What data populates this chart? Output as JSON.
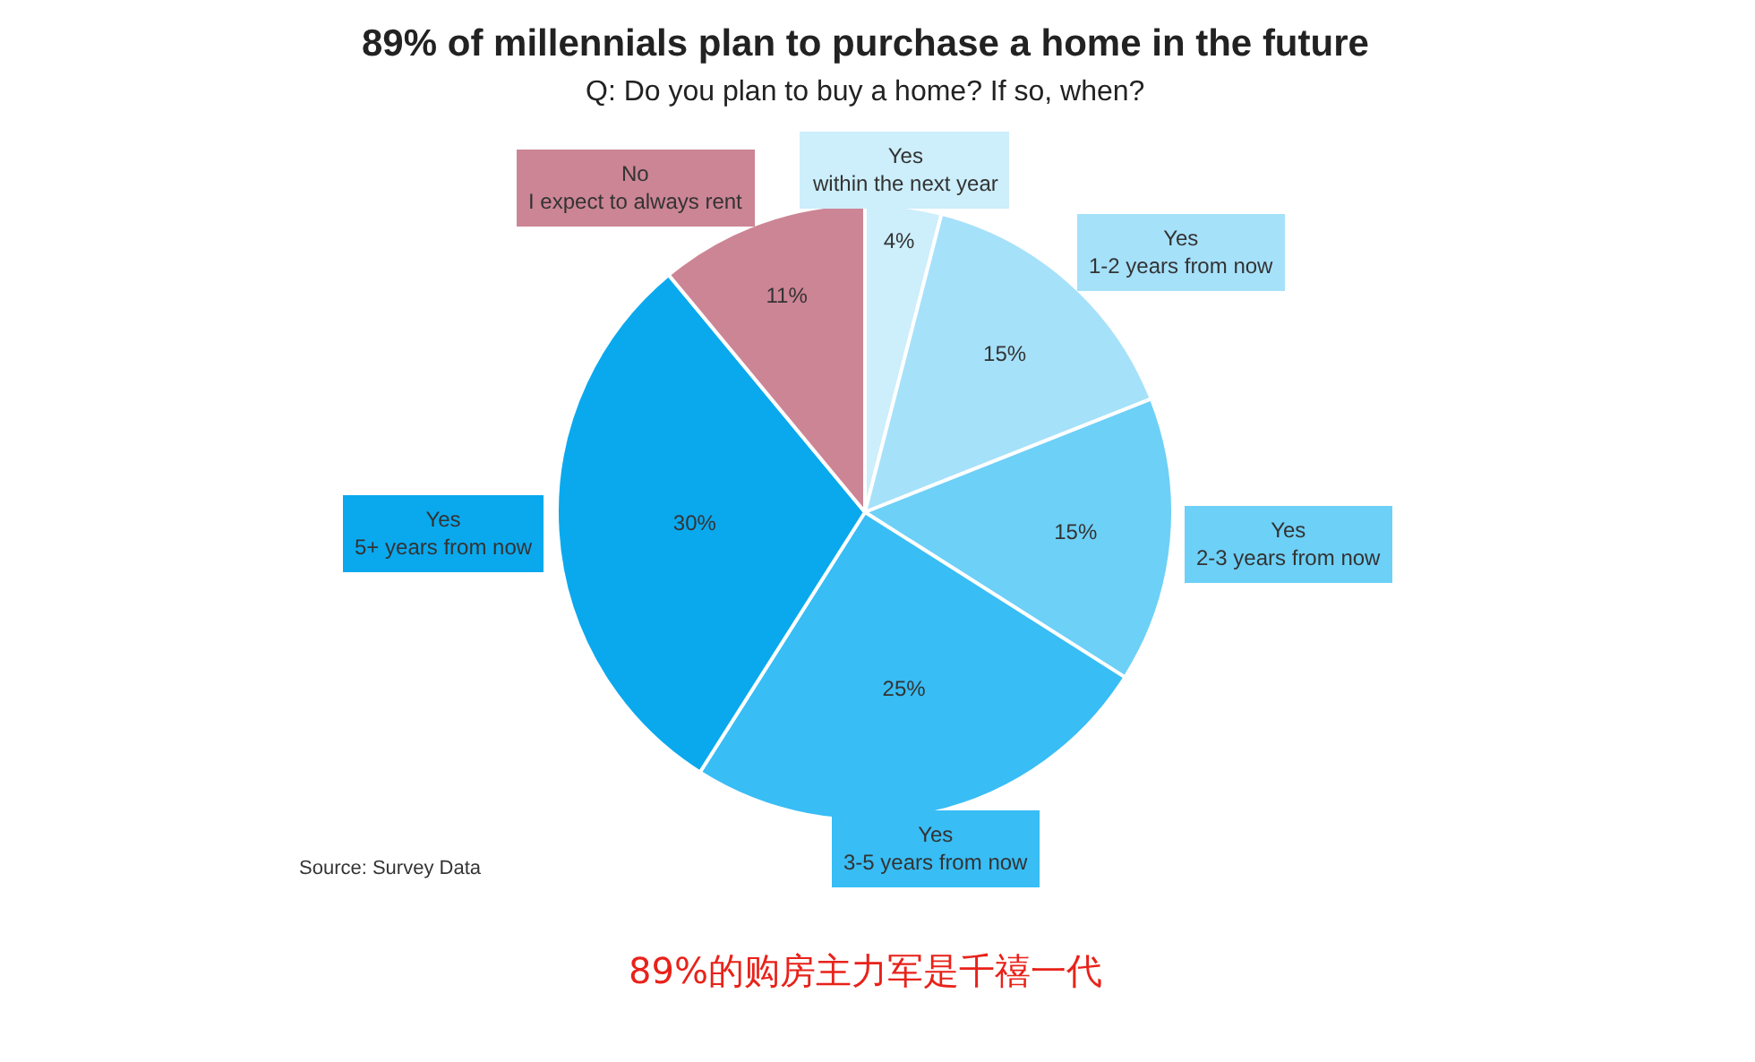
{
  "chart_data": {
    "type": "pie",
    "title": "89% of millennials plan to purchase a home in the future",
    "subtitle": "Q: Do you plan to buy a home? If so, when?",
    "categories": [
      "Yes\nwithin the next year",
      "Yes\n1-2 years from now",
      "Yes\n2-3 years from now",
      "Yes\n3-5 years from now",
      "Yes\n5+ years from now",
      "No\nI expect to always rent"
    ],
    "values": [
      4,
      15,
      15,
      25,
      30,
      11
    ],
    "value_labels": [
      "4%",
      "15%",
      "15%",
      "25%",
      "30%",
      "11%"
    ],
    "colors": [
      "#cdeefb",
      "#a6e1fa",
      "#6dd0f7",
      "#38bdf5",
      "#0aa9ee",
      "#cc8595"
    ],
    "legend": false,
    "annotations": [
      "Source: Survey Data",
      "89%的购房主力军是千禧一代"
    ]
  }
}
